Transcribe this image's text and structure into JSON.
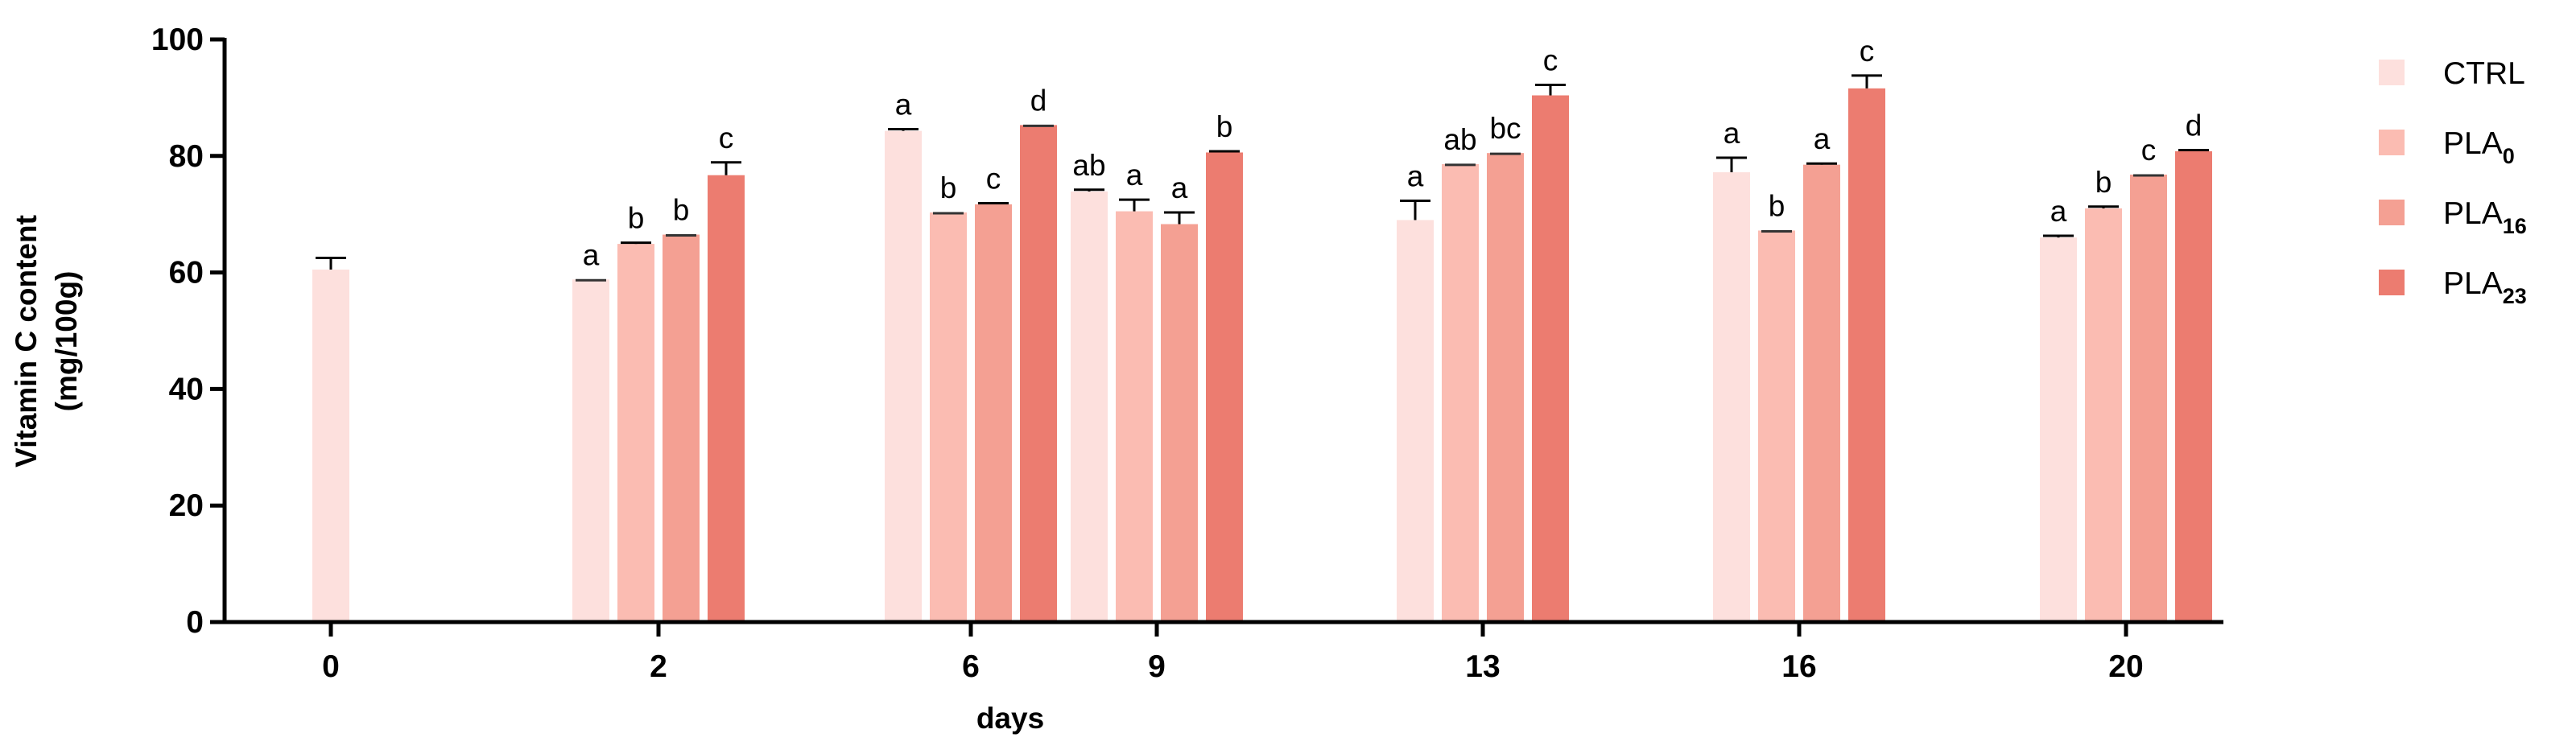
{
  "chart_data": {
    "type": "bar",
    "title": "",
    "xlabel": "days",
    "ylabel_line1": "Vitamin C content",
    "ylabel_line2": "(mg/100g)",
    "ylim": [
      0,
      100
    ],
    "yticks": [
      0,
      20,
      40,
      60,
      80,
      100
    ],
    "categories": [
      "0",
      "2",
      "6",
      "9",
      "13",
      "16",
      "20"
    ],
    "grid": false,
    "legend_position": "right",
    "series": [
      {
        "name": "CTRL",
        "name_base": "CTRL",
        "name_sub": "",
        "color": "#fde0dd",
        "values": [
          60.5,
          58.8,
          84.3,
          73.9,
          69.0,
          77.2,
          66.0
        ],
        "errors": [
          2.0,
          0,
          0.3,
          0.3,
          3.3,
          2.5,
          0.3
        ],
        "labels": [
          "",
          "a",
          "a",
          "ab",
          "a",
          "a",
          "a"
        ]
      },
      {
        "name": "PLA0",
        "name_base": "PLA",
        "name_sub": "0",
        "color": "#fbbcb2",
        "values": [
          null,
          64.9,
          70.3,
          70.5,
          78.6,
          67.2,
          71.0
        ],
        "errors": [
          null,
          0.2,
          0,
          2.0,
          0,
          0,
          0.3
        ],
        "labels": [
          "",
          "b",
          "b",
          "a",
          "ab",
          "b",
          "b"
        ]
      },
      {
        "name": "PLA16",
        "name_base": "PLA",
        "name_sub": "16",
        "color": "#f4a093",
        "values": [
          null,
          66.5,
          71.7,
          68.3,
          80.5,
          78.5,
          76.8
        ],
        "errors": [
          null,
          0,
          0.2,
          2.0,
          0,
          0.2,
          0
        ],
        "labels": [
          "",
          "b",
          "c",
          "a",
          "bc",
          "a",
          "c"
        ]
      },
      {
        "name": "PLA23",
        "name_base": "PLA",
        "name_sub": "23",
        "color": "#ec7c70",
        "values": [
          null,
          76.7,
          85.3,
          80.6,
          90.4,
          91.6,
          80.8
        ],
        "errors": [
          null,
          2.2,
          0,
          0.2,
          1.8,
          2.2,
          0.2
        ],
        "labels": [
          "",
          "c",
          "d",
          "b",
          "c",
          "c",
          "d"
        ]
      }
    ]
  }
}
